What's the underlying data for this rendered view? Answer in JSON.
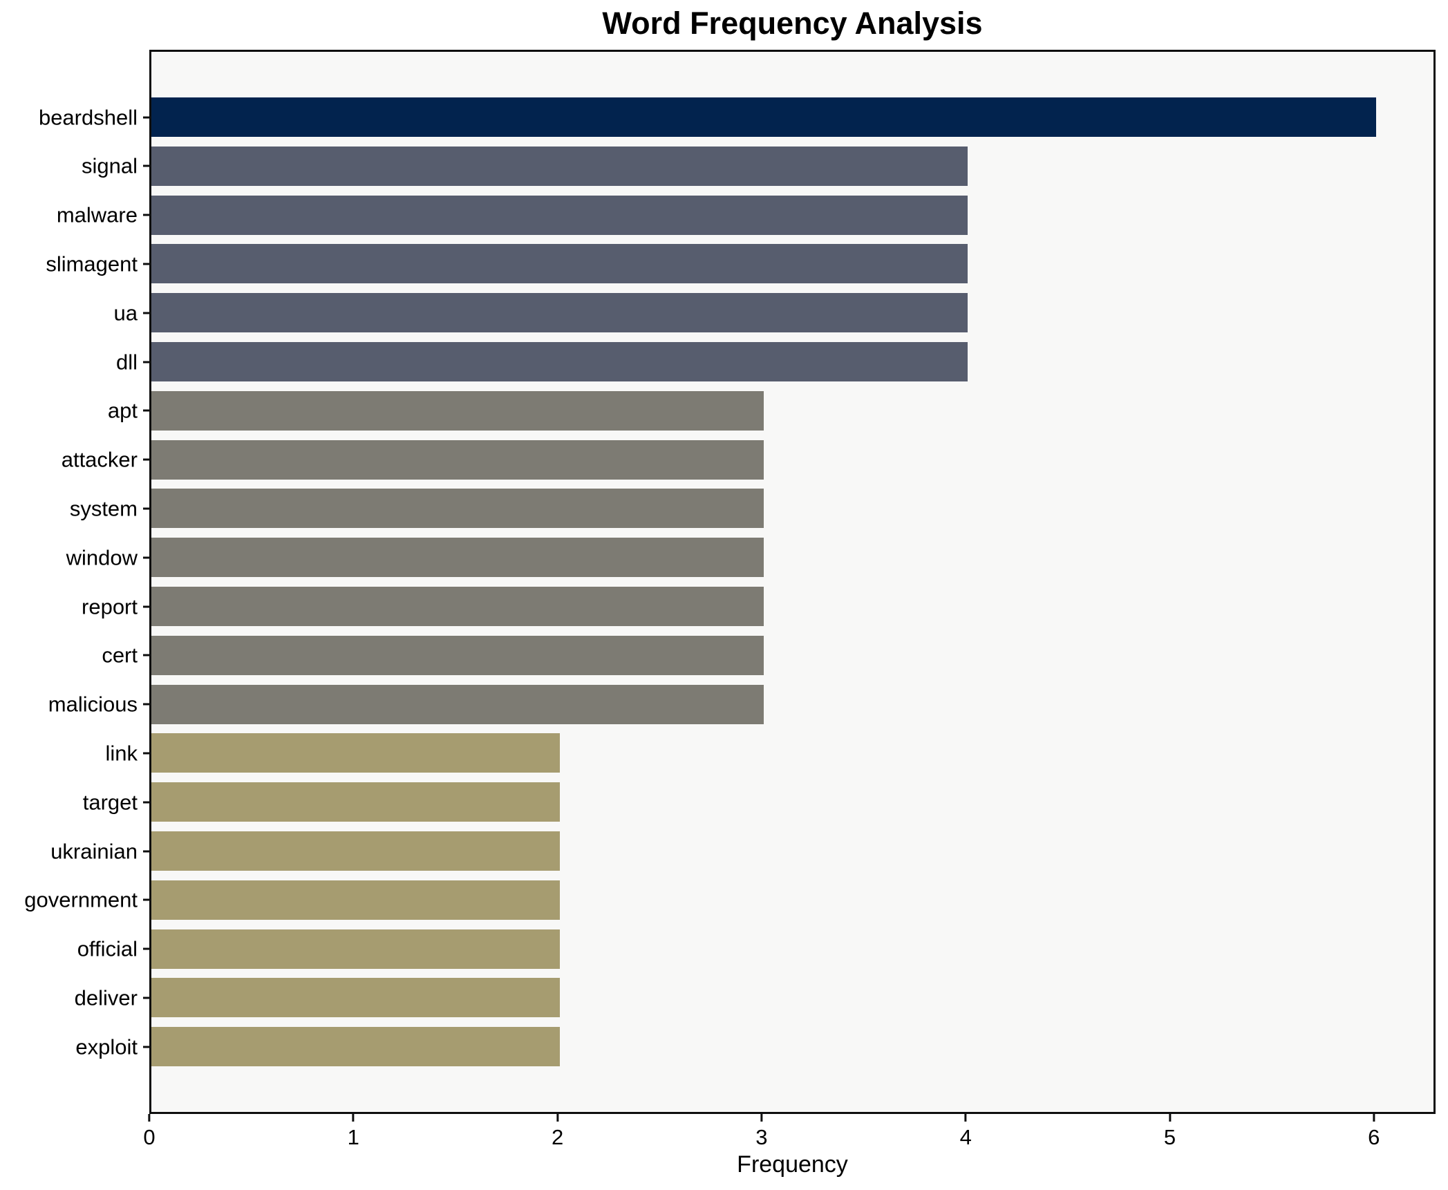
{
  "chart_data": {
    "type": "bar",
    "orientation": "horizontal",
    "title": "Word Frequency Analysis",
    "xlabel": "Frequency",
    "ylabel": "",
    "categories": [
      "beardshell",
      "signal",
      "malware",
      "slimagent",
      "ua",
      "dll",
      "apt",
      "attacker",
      "system",
      "window",
      "report",
      "cert",
      "malicious",
      "link",
      "target",
      "ukrainian",
      "government",
      "official",
      "deliver",
      "exploit"
    ],
    "values": [
      6,
      4,
      4,
      4,
      4,
      4,
      3,
      3,
      3,
      3,
      3,
      3,
      3,
      2,
      2,
      2,
      2,
      2,
      2,
      2
    ],
    "bar_colors": [
      "#02234e",
      "#575d6e",
      "#575d6e",
      "#575d6e",
      "#575d6e",
      "#575d6e",
      "#7d7b73",
      "#7d7b73",
      "#7d7b73",
      "#7d7b73",
      "#7d7b73",
      "#7d7b73",
      "#7d7b73",
      "#a69c70",
      "#a69c70",
      "#a69c70",
      "#a69c70",
      "#a69c70",
      "#a69c70",
      "#a69c70"
    ],
    "value_color_map": {
      "6": "#02234e",
      "4": "#575d6e",
      "3": "#7d7b73",
      "2": "#a69c70"
    },
    "xticks": [
      0,
      1,
      2,
      3,
      4,
      5,
      6
    ],
    "xlim": [
      0,
      6.3
    ],
    "grid": false,
    "legend": null,
    "plot_background": "#f8f8f7",
    "figure_background": "#ffffff",
    "spine_color": "#0f0f0f",
    "text_color": "#000000"
  }
}
